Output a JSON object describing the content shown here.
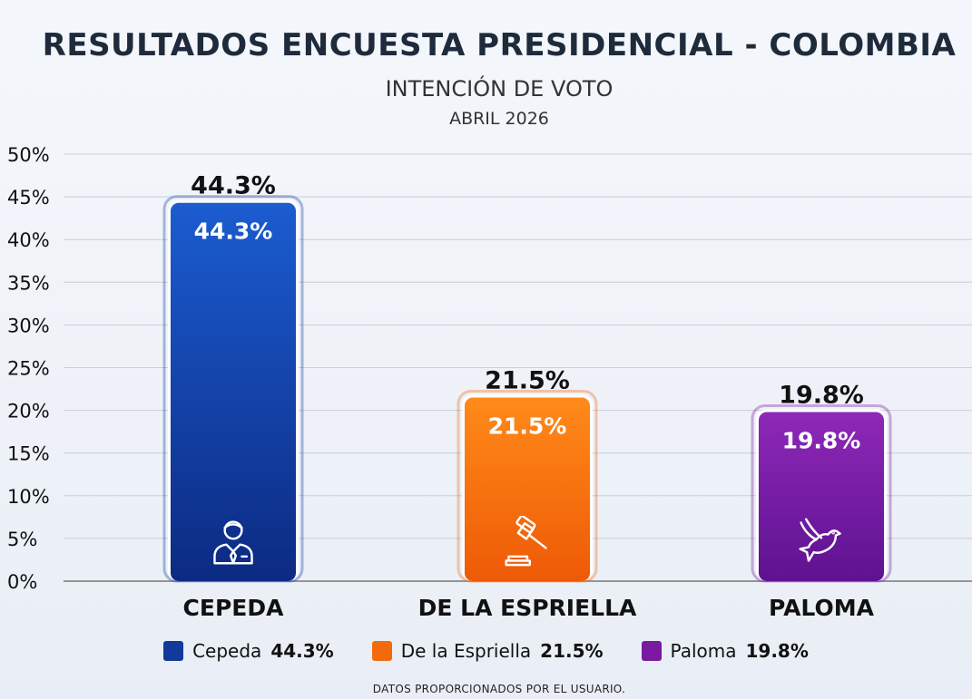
{
  "header": {
    "title": "RESULTADOS ENCUESTA PRESIDENCIAL - COLOMBIA",
    "subtitle": "INTENCIÓN DE VOTO",
    "date": "ABRIL 2026"
  },
  "chart_data": {
    "type": "bar",
    "categories": [
      "CEPEDA",
      "DE LA ESPRIELLA",
      "PALOMA"
    ],
    "values": [
      44.3,
      21.5,
      19.8
    ],
    "value_labels": [
      "44.3%",
      "21.5%",
      "19.8%"
    ],
    "ylim": [
      0,
      50
    ],
    "yticks": [
      "0%",
      "5%",
      "10%",
      "15%",
      "20%",
      "25%",
      "30%",
      "35%",
      "40%",
      "45%",
      "50%"
    ],
    "grid": true,
    "colors": [
      "#1240a0",
      "#f26a0c",
      "#7a1aa0"
    ],
    "icons": [
      "person-icon",
      "gavel-icon",
      "dove-icon"
    ],
    "legend_placement": "bottom"
  },
  "legend": [
    {
      "name": "Cepeda",
      "value": "44.3%",
      "color": "#123a9a"
    },
    {
      "name": "De la Espriella",
      "value": "21.5%",
      "color": "#f26a0c"
    },
    {
      "name": "Paloma",
      "value": "19.8%",
      "color": "#7a1aa0"
    }
  ],
  "footer": {
    "source": "DATOS PROPORCIONADOS POR EL USUARIO."
  }
}
